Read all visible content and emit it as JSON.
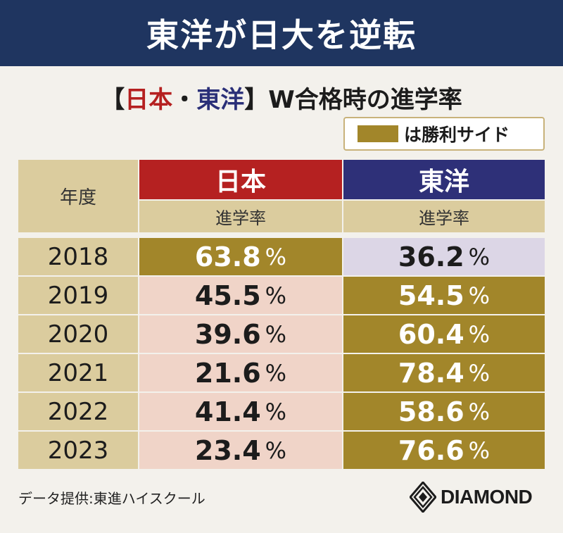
{
  "banner": {
    "title": "東洋が日大を逆転"
  },
  "subtitle": {
    "open": "【",
    "nichidai": "日本",
    "dot": "・",
    "toyo": "東洋",
    "close": "】",
    "rest": "W合格時の進学率"
  },
  "legend": {
    "label": "は勝利サイド",
    "swatch_color": "#a2862a"
  },
  "table": {
    "year_header": "年度",
    "columns": [
      {
        "name": "日本",
        "sub": "進学率",
        "color": "#b52121"
      },
      {
        "name": "東洋",
        "sub": "進学率",
        "color": "#2e3078"
      }
    ],
    "rows": [
      {
        "year": "2018",
        "nichidai": "63.8",
        "toyo": "36.2",
        "winner": "nichidai"
      },
      {
        "year": "2019",
        "nichidai": "45.5",
        "toyo": "54.5",
        "winner": "toyo"
      },
      {
        "year": "2020",
        "nichidai": "39.6",
        "toyo": "60.4",
        "winner": "toyo"
      },
      {
        "year": "2021",
        "nichidai": "21.6",
        "toyo": "78.4",
        "winner": "toyo"
      },
      {
        "year": "2022",
        "nichidai": "41.4",
        "toyo": "58.6",
        "winner": "toyo"
      },
      {
        "year": "2023",
        "nichidai": "23.4",
        "toyo": "76.6",
        "winner": "toyo"
      }
    ],
    "unit": "%"
  },
  "footer": {
    "source": "データ提供:東進ハイスクール",
    "brand": "DIAMOND"
  }
}
